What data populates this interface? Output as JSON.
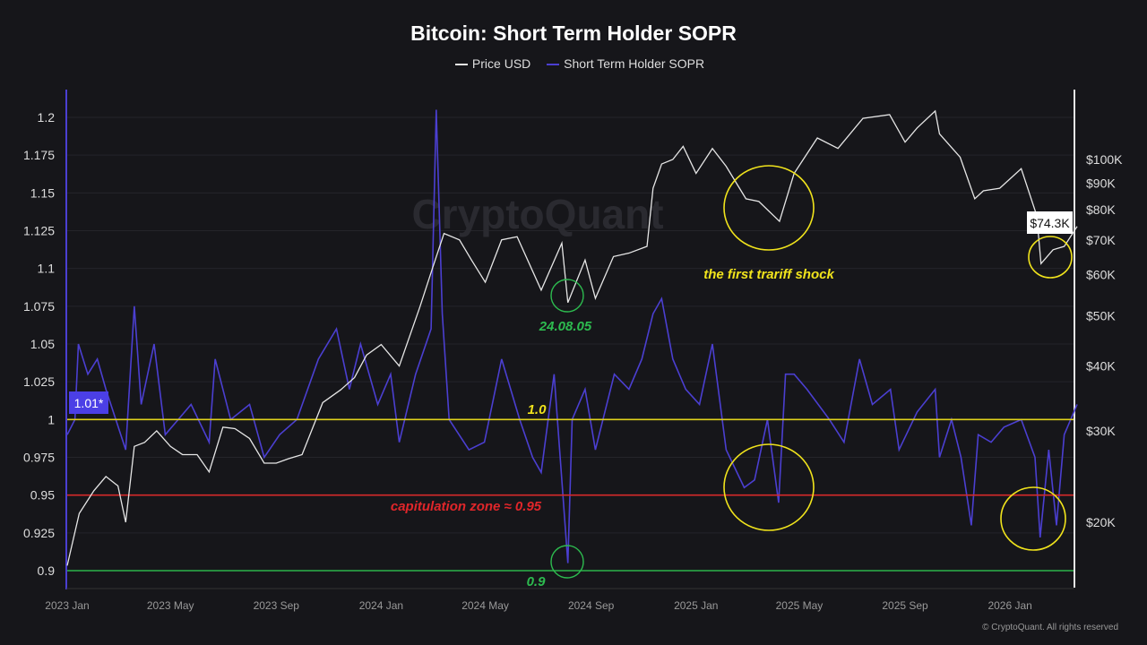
{
  "chart_data": {
    "type": "line",
    "title": "Bitcoin: Short Term Holder SOPR",
    "legend_position": "top-center",
    "grid": true,
    "colors": {
      "price": "#e6e6e6",
      "sopr": "#4b3fd1",
      "line_1": "#e0d21c",
      "line_095": "#d62a2a",
      "line_09": "#2cb34a",
      "annotation_yellow": "#f0e31c",
      "annotation_green": "#2dbb4f",
      "annotation_red": "#e0262a"
    },
    "series": [
      {
        "name": "Price USD",
        "axis": "right",
        "scale": "log",
        "points": [
          [
            "2023-01-01",
            16500
          ],
          [
            "2023-01-15",
            20800
          ],
          [
            "2023-02-01",
            23000
          ],
          [
            "2023-02-15",
            24500
          ],
          [
            "2023-03-01",
            23500
          ],
          [
            "2023-03-10",
            20000
          ],
          [
            "2023-03-20",
            28000
          ],
          [
            "2023-04-01",
            28500
          ],
          [
            "2023-04-15",
            30000
          ],
          [
            "2023-05-01",
            28000
          ],
          [
            "2023-05-15",
            27000
          ],
          [
            "2023-06-01",
            27000
          ],
          [
            "2023-06-15",
            25000
          ],
          [
            "2023-07-01",
            30500
          ],
          [
            "2023-07-15",
            30300
          ],
          [
            "2023-08-01",
            29000
          ],
          [
            "2023-08-18",
            26000
          ],
          [
            "2023-09-01",
            26000
          ],
          [
            "2023-09-15",
            26500
          ],
          [
            "2023-10-01",
            27000
          ],
          [
            "2023-10-25",
            34000
          ],
          [
            "2023-11-15",
            36000
          ],
          [
            "2023-12-01",
            38000
          ],
          [
            "2023-12-15",
            42000
          ],
          [
            "2024-01-01",
            44000
          ],
          [
            "2024-01-22",
            40000
          ],
          [
            "2024-02-15",
            52000
          ],
          [
            "2024-03-01",
            62000
          ],
          [
            "2024-03-14",
            72000
          ],
          [
            "2024-04-01",
            70000
          ],
          [
            "2024-04-15",
            64000
          ],
          [
            "2024-05-01",
            58000
          ],
          [
            "2024-05-20",
            70000
          ],
          [
            "2024-06-07",
            71000
          ],
          [
            "2024-07-05",
            56000
          ],
          [
            "2024-07-29",
            69000
          ],
          [
            "2024-08-05",
            53000
          ],
          [
            "2024-08-25",
            64000
          ],
          [
            "2024-09-06",
            54000
          ],
          [
            "2024-09-27",
            65000
          ],
          [
            "2024-10-15",
            66000
          ],
          [
            "2024-11-05",
            68000
          ],
          [
            "2024-11-12",
            88000
          ],
          [
            "2024-11-22",
            98000
          ],
          [
            "2024-12-05",
            100000
          ],
          [
            "2024-12-17",
            106000
          ],
          [
            "2025-01-01",
            94000
          ],
          [
            "2025-01-20",
            105000
          ],
          [
            "2025-02-05",
            97000
          ],
          [
            "2025-02-28",
            84000
          ],
          [
            "2025-03-15",
            83000
          ],
          [
            "2025-04-08",
            76000
          ],
          [
            "2025-04-25",
            94000
          ],
          [
            "2025-05-22",
            110000
          ],
          [
            "2025-06-15",
            105000
          ],
          [
            "2025-07-14",
            120000
          ],
          [
            "2025-08-14",
            122000
          ],
          [
            "2025-09-01",
            108000
          ],
          [
            "2025-09-15",
            115000
          ],
          [
            "2025-10-06",
            124000
          ],
          [
            "2025-10-11",
            112000
          ],
          [
            "2025-11-04",
            101000
          ],
          [
            "2025-11-21",
            84000
          ],
          [
            "2025-12-01",
            87000
          ],
          [
            "2025-12-20",
            88000
          ],
          [
            "2026-01-14",
            96000
          ],
          [
            "2026-02-01",
            78000
          ],
          [
            "2026-02-06",
            63000
          ],
          [
            "2026-02-20",
            67000
          ],
          [
            "2026-03-05",
            68000
          ],
          [
            "2026-03-20",
            74300
          ]
        ]
      },
      {
        "name": "Short Term Holder SOPR",
        "axis": "left",
        "points": [
          [
            "2023-01-01",
            0.99
          ],
          [
            "2023-01-10",
            1.0
          ],
          [
            "2023-01-14",
            1.05
          ],
          [
            "2023-01-25",
            1.03
          ],
          [
            "2023-02-05",
            1.04
          ],
          [
            "2023-02-15",
            1.02
          ],
          [
            "2023-03-10",
            0.98
          ],
          [
            "2023-03-20",
            1.075
          ],
          [
            "2023-03-28",
            1.01
          ],
          [
            "2023-04-12",
            1.05
          ],
          [
            "2023-04-25",
            0.99
          ],
          [
            "2023-05-10",
            1.0
          ],
          [
            "2023-05-25",
            1.01
          ],
          [
            "2023-06-15",
            0.985
          ],
          [
            "2023-06-22",
            1.04
          ],
          [
            "2023-07-10",
            1.0
          ],
          [
            "2023-08-01",
            1.01
          ],
          [
            "2023-08-18",
            0.975
          ],
          [
            "2023-09-05",
            0.99
          ],
          [
            "2023-09-25",
            1.0
          ],
          [
            "2023-10-20",
            1.04
          ],
          [
            "2023-11-10",
            1.06
          ],
          [
            "2023-11-25",
            1.02
          ],
          [
            "2023-12-08",
            1.05
          ],
          [
            "2023-12-28",
            1.01
          ],
          [
            "2024-01-12",
            1.03
          ],
          [
            "2024-01-22",
            0.985
          ],
          [
            "2024-02-10",
            1.03
          ],
          [
            "2024-02-28",
            1.06
          ],
          [
            "2024-03-05",
            1.205
          ],
          [
            "2024-03-12",
            1.07
          ],
          [
            "2024-03-20",
            1.0
          ],
          [
            "2024-04-12",
            0.98
          ],
          [
            "2024-04-30",
            0.985
          ],
          [
            "2024-05-20",
            1.04
          ],
          [
            "2024-06-10",
            1.0
          ],
          [
            "2024-06-25",
            0.975
          ],
          [
            "2024-07-05",
            0.965
          ],
          [
            "2024-07-20",
            1.03
          ],
          [
            "2024-08-05",
            0.905
          ],
          [
            "2024-08-10",
            1.0
          ],
          [
            "2024-08-25",
            1.02
          ],
          [
            "2024-09-06",
            0.98
          ],
          [
            "2024-09-28",
            1.03
          ],
          [
            "2024-10-15",
            1.02
          ],
          [
            "2024-10-30",
            1.04
          ],
          [
            "2024-11-12",
            1.07
          ],
          [
            "2024-11-22",
            1.08
          ],
          [
            "2024-12-05",
            1.04
          ],
          [
            "2024-12-20",
            1.02
          ],
          [
            "2025-01-05",
            1.01
          ],
          [
            "2025-01-20",
            1.05
          ],
          [
            "2025-02-05",
            0.98
          ],
          [
            "2025-02-26",
            0.955
          ],
          [
            "2025-03-10",
            0.96
          ],
          [
            "2025-03-25",
            1.0
          ],
          [
            "2025-04-07",
            0.945
          ],
          [
            "2025-04-15",
            1.03
          ],
          [
            "2025-04-25",
            1.03
          ],
          [
            "2025-05-10",
            1.02
          ],
          [
            "2025-06-05",
            1.0
          ],
          [
            "2025-06-22",
            0.985
          ],
          [
            "2025-07-10",
            1.04
          ],
          [
            "2025-07-25",
            1.01
          ],
          [
            "2025-08-15",
            1.02
          ],
          [
            "2025-08-25",
            0.98
          ],
          [
            "2025-09-15",
            1.005
          ],
          [
            "2025-10-06",
            1.02
          ],
          [
            "2025-10-11",
            0.975
          ],
          [
            "2025-10-25",
            1.0
          ],
          [
            "2025-11-05",
            0.975
          ],
          [
            "2025-11-17",
            0.93
          ],
          [
            "2025-11-25",
            0.99
          ],
          [
            "2025-12-10",
            0.985
          ],
          [
            "2025-12-25",
            0.995
          ],
          [
            "2026-01-14",
            1.0
          ],
          [
            "2026-01-30",
            0.975
          ],
          [
            "2026-02-05",
            0.922
          ],
          [
            "2026-02-15",
            0.98
          ],
          [
            "2026-02-24",
            0.93
          ],
          [
            "2026-03-05",
            0.99
          ],
          [
            "2026-03-20",
            1.01
          ]
        ]
      }
    ],
    "left_axis": {
      "ticks": [
        "1.2",
        "1.175",
        "1.15",
        "1.125",
        "1.1",
        "1.075",
        "1.05",
        "1.025",
        "1",
        "0.975",
        "0.95",
        "0.925",
        "0.9"
      ],
      "range": [
        0.9,
        1.2
      ],
      "current_label": "1.01*"
    },
    "right_axis": {
      "ticks": [
        {
          "v": 100000,
          "t": "$100K"
        },
        {
          "v": 90000,
          "t": "$90K"
        },
        {
          "v": 80000,
          "t": "$80K"
        },
        {
          "v": 70000,
          "t": "$70K"
        },
        {
          "v": 60000,
          "t": "$60K"
        },
        {
          "v": 50000,
          "t": "$50K"
        },
        {
          "v": 40000,
          "t": "$40K"
        },
        {
          "v": 30000,
          "t": "$30K"
        },
        {
          "v": 20000,
          "t": "$20K"
        }
      ],
      "scale": "log",
      "current_label": "$74.3K"
    },
    "x_axis": {
      "ticks": [
        {
          "d": "2023-01-01",
          "t": "2023 Jan"
        },
        {
          "d": "2023-05-01",
          "t": "2023 May"
        },
        {
          "d": "2023-09-01",
          "t": "2023 Sep"
        },
        {
          "d": "2024-01-01",
          "t": "2024 Jan"
        },
        {
          "d": "2024-05-01",
          "t": "2024 May"
        },
        {
          "d": "2024-09-01",
          "t": "2024 Sep"
        },
        {
          "d": "2025-01-01",
          "t": "2025 Jan"
        },
        {
          "d": "2025-05-01",
          "t": "2025 May"
        },
        {
          "d": "2025-09-01",
          "t": "2025 Sep"
        },
        {
          "d": "2026-01-01",
          "t": "2026 Jan"
        }
      ]
    },
    "reference_lines": [
      {
        "value": 1.0,
        "label": "1.0",
        "color": "yellow"
      },
      {
        "value": 0.95,
        "label": "capitulation zone ≈ 0.95",
        "color": "red"
      },
      {
        "value": 0.9,
        "label": "0.9",
        "color": "green"
      }
    ],
    "annotations": {
      "tariff": "the first trariff shock",
      "date_mark": "24.08.05"
    },
    "watermark": "CryptoQuant"
  },
  "footer": {
    "copyright": "© CryptoQuant. All rights reserved"
  }
}
